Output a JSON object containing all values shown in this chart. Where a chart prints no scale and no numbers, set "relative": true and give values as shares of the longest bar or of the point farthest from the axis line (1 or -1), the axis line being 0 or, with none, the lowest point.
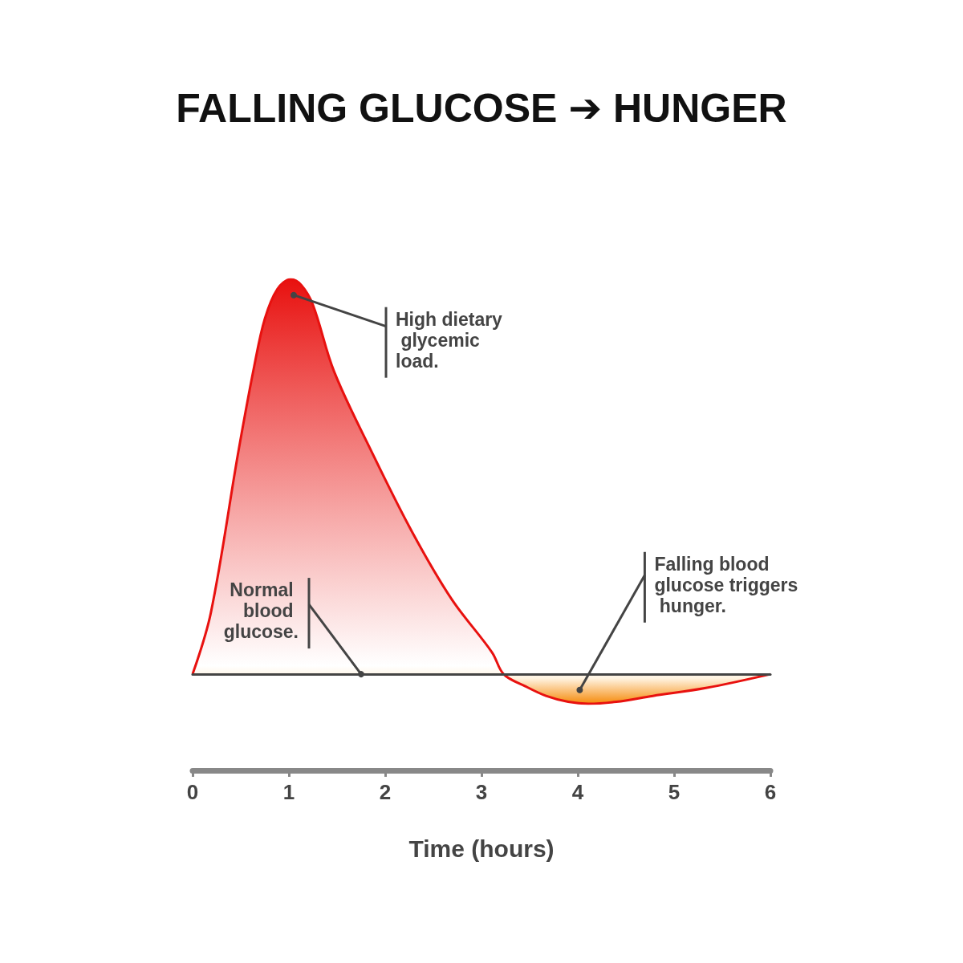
{
  "chart_data": {
    "type": "area",
    "title": "FALLING GLUCOSE ➔ HUNGER",
    "relative": true,
    "xlabel": "Time (hours)",
    "xlim": [
      0,
      6
    ],
    "xticks": [
      0,
      1,
      2,
      3,
      4,
      5,
      6
    ],
    "grid": false,
    "series": [
      {
        "color": "#e8110f",
        "x": [
          0,
          0.19,
          0.475,
          0.64,
          0.75,
          0.88,
          1.02,
          1.13,
          1.25,
          1.47,
          1.86,
          2.28,
          2.69,
          3.11,
          3.23,
          3.45,
          3.67,
          3.9,
          4.11,
          4.4,
          4.78,
          5.33,
          6
        ],
        "values": [
          0,
          0.156,
          0.563,
          0.78,
          0.9,
          0.975,
          1,
          0.985,
          0.935,
          0.766,
          0.563,
          0.36,
          0.19,
          0.055,
          0,
          -0.03,
          -0.055,
          -0.07,
          -0.075,
          -0.07,
          -0.055,
          -0.035,
          0
        ]
      }
    ],
    "annotations": [
      {
        "text": "High dietary glycemic load.",
        "x": 1.05,
        "y": 0.96
      },
      {
        "text": "Normal blood glucose.",
        "x": 1.75,
        "y": 0
      },
      {
        "text": "Falling blood glucose triggers hunger.",
        "x": 4.02,
        "y": -0.04
      }
    ]
  }
}
